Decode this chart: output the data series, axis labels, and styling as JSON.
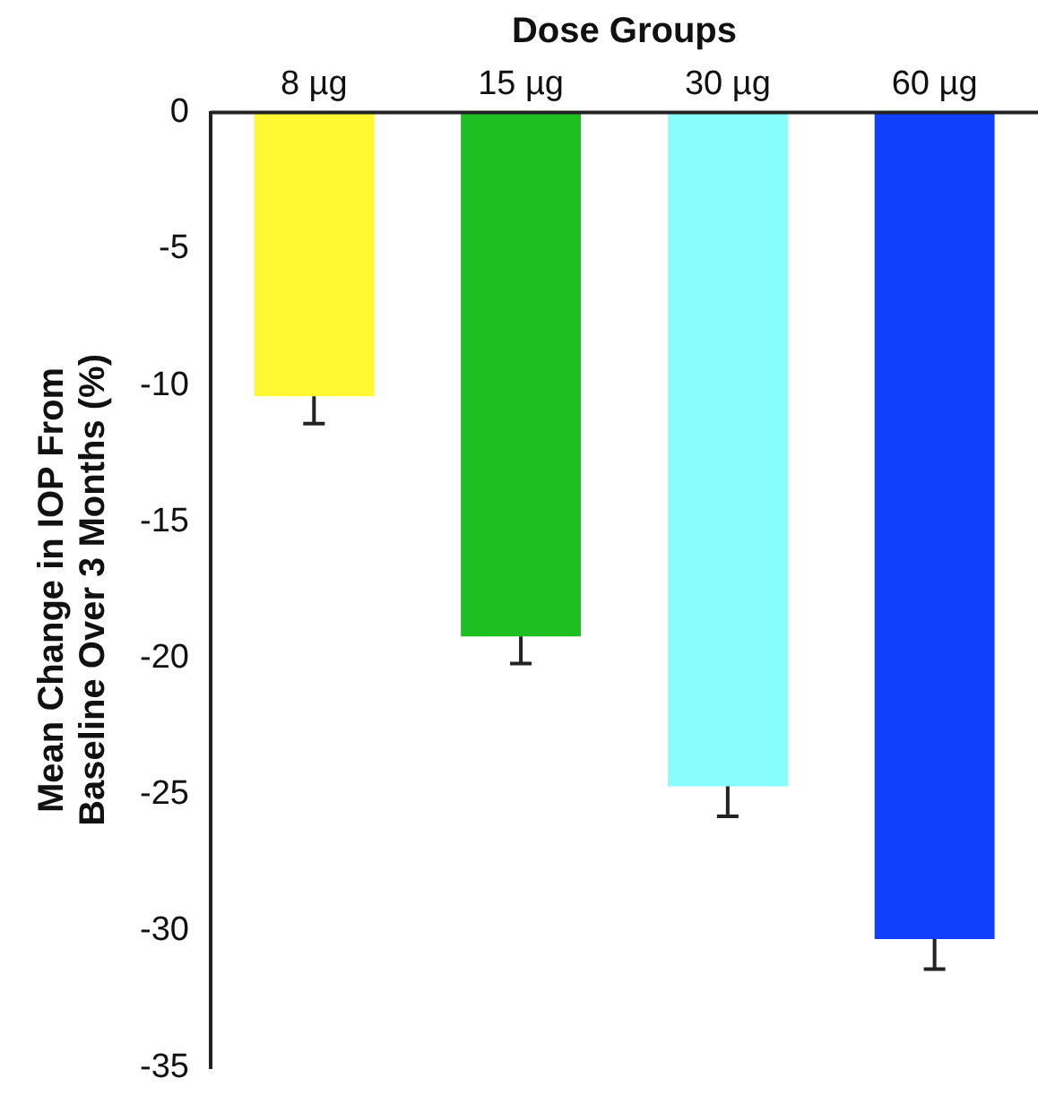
{
  "chart_data": {
    "type": "bar",
    "xlabel": "Dose Groups",
    "ylabel": "Mean Change in IOP From Baseline Over 3 Months (%)",
    "categories": [
      "8 µg",
      "15 µg",
      "30 µg",
      "60 µg"
    ],
    "values": [
      -10.4,
      -19.2,
      -24.7,
      -30.3
    ],
    "errors": [
      [
        -11.4,
        -10.4
      ],
      [
        -20.2,
        -19.2
      ],
      [
        -25.8,
        -24.7
      ],
      [
        -31.4,
        -30.3
      ]
    ],
    "colors": [
      "#fff833",
      "#1ebf20",
      "#87fefb",
      "#103ffe"
    ],
    "ylim": [
      -35,
      0
    ],
    "yticks": [
      -35,
      -30,
      -25,
      -20,
      -15,
      -10,
      -5,
      0
    ],
    "grid": false,
    "legend": false
  }
}
